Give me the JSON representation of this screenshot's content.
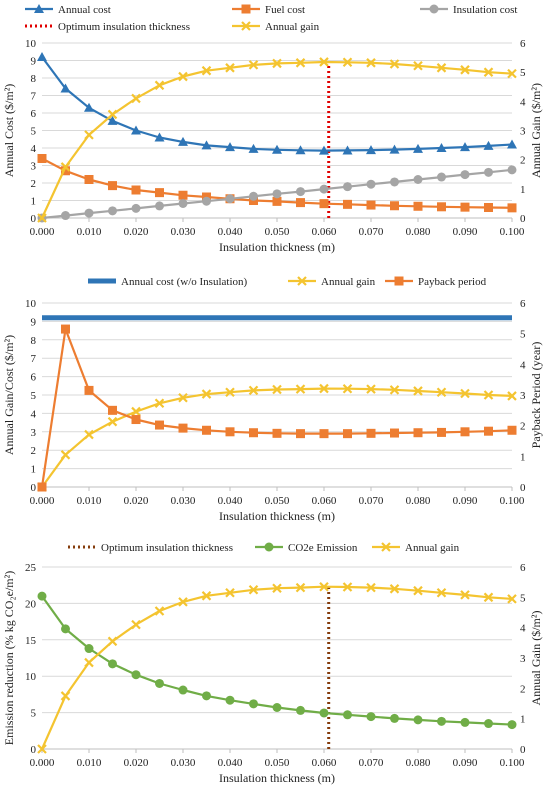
{
  "chart_data": [
    {
      "type": "line",
      "title": "",
      "xlabel": "Insulation thickness (m)",
      "ylabel_left": "Annual Cost ($/m²)",
      "ylabel_right": "Annual Gain ($/m²)",
      "xlim": [
        0,
        0.1
      ],
      "ylim_left": [
        0,
        10
      ],
      "ylim_right": [
        0,
        6
      ],
      "grid": true,
      "legend_position": "top",
      "x": [
        0,
        0.005,
        0.01,
        0.015,
        0.02,
        0.025,
        0.03,
        0.035,
        0.04,
        0.045,
        0.05,
        0.055,
        0.06,
        0.065,
        0.07,
        0.075,
        0.08,
        0.085,
        0.09,
        0.095,
        0.1
      ],
      "x_tick_labels": [
        "0.000",
        "0.010",
        "0.020",
        "0.030",
        "0.040",
        "0.050",
        "0.060",
        "0.070",
        "0.080",
        "0.090",
        "0.100"
      ],
      "y_left_tick_labels": [
        "0",
        "1",
        "2",
        "3",
        "4",
        "5",
        "6",
        "7",
        "8",
        "9",
        "10"
      ],
      "y_right_tick_labels": [
        "0",
        "1",
        "2",
        "3",
        "4",
        "5",
        "6"
      ],
      "series": [
        {
          "name": "Annual cost",
          "axis": "left",
          "color": "#2e75b6",
          "marker": "triangle",
          "values": [
            9.2,
            7.4,
            6.3,
            5.55,
            5.0,
            4.6,
            4.35,
            4.15,
            4.05,
            3.95,
            3.9,
            3.87,
            3.85,
            3.86,
            3.88,
            3.91,
            3.95,
            4.0,
            4.05,
            4.12,
            4.2
          ]
        },
        {
          "name": "Fuel cost",
          "axis": "left",
          "color": "#ed7d31",
          "marker": "square",
          "values": [
            3.4,
            2.7,
            2.2,
            1.85,
            1.6,
            1.45,
            1.3,
            1.2,
            1.1,
            1.0,
            0.95,
            0.88,
            0.82,
            0.78,
            0.74,
            0.7,
            0.67,
            0.64,
            0.62,
            0.6,
            0.58
          ]
        },
        {
          "name": "Insulation cost",
          "axis": "left",
          "color": "#a5a5a5",
          "marker": "circle",
          "values": [
            0,
            0.14,
            0.28,
            0.41,
            0.55,
            0.69,
            0.83,
            0.96,
            1.1,
            1.24,
            1.38,
            1.51,
            1.65,
            1.79,
            1.93,
            2.06,
            2.2,
            2.34,
            2.48,
            2.61,
            2.75
          ]
        },
        {
          "name": "Annual gain",
          "axis": "right",
          "color": "#f4c430",
          "marker": "x",
          "values": [
            0,
            1.75,
            2.85,
            3.55,
            4.1,
            4.55,
            4.85,
            5.05,
            5.15,
            5.25,
            5.3,
            5.32,
            5.35,
            5.34,
            5.32,
            5.28,
            5.22,
            5.15,
            5.08,
            5.0,
            4.95
          ]
        }
      ],
      "vertical_line": {
        "name": "Optimum insulation thickness",
        "x": 0.061,
        "color": "#e00000",
        "style": "dotted",
        "y_top_right": 5.35
      }
    },
    {
      "type": "line",
      "title": "",
      "xlabel": "Insulation thickness (m)",
      "ylabel_left": "Annual Gain/Cost ($/m²)",
      "ylabel_right": "Payback Period (year)",
      "xlim": [
        0,
        0.1
      ],
      "ylim_left": [
        0,
        10
      ],
      "ylim_right": [
        0,
        6
      ],
      "grid": true,
      "legend_position": "top",
      "x": [
        0,
        0.005,
        0.01,
        0.015,
        0.02,
        0.025,
        0.03,
        0.035,
        0.04,
        0.045,
        0.05,
        0.055,
        0.06,
        0.065,
        0.07,
        0.075,
        0.08,
        0.085,
        0.09,
        0.095,
        0.1
      ],
      "x_tick_labels": [
        "0.000",
        "0.010",
        "0.020",
        "0.030",
        "0.040",
        "0.050",
        "0.060",
        "0.070",
        "0.080",
        "0.090",
        "0.100"
      ],
      "y_left_tick_labels": [
        "0",
        "1",
        "2",
        "3",
        "4",
        "5",
        "6",
        "7",
        "8",
        "9",
        "10"
      ],
      "y_right_tick_labels": [
        "0",
        "1",
        "2",
        "3",
        "4",
        "5",
        "6"
      ],
      "series": [
        {
          "name": "Annual cost (w/o Insulation)",
          "axis": "left",
          "color": "#2e75b6",
          "marker": "none",
          "line_width": 5,
          "values": [
            9.2,
            9.2,
            9.2,
            9.2,
            9.2,
            9.2,
            9.2,
            9.2,
            9.2,
            9.2,
            9.2,
            9.2,
            9.2,
            9.2,
            9.2,
            9.2,
            9.2,
            9.2,
            9.2,
            9.2,
            9.2
          ]
        },
        {
          "name": "Annual gain",
          "axis": "left",
          "color": "#f4c430",
          "marker": "x",
          "values": [
            0,
            1.75,
            2.85,
            3.55,
            4.1,
            4.55,
            4.85,
            5.05,
            5.15,
            5.25,
            5.3,
            5.32,
            5.35,
            5.34,
            5.32,
            5.28,
            5.22,
            5.15,
            5.08,
            5.0,
            4.95
          ]
        },
        {
          "name": "Payback period",
          "axis": "right",
          "color": "#ed7d31",
          "marker": "square",
          "values": [
            0,
            5.15,
            3.15,
            2.5,
            2.2,
            2.02,
            1.92,
            1.85,
            1.8,
            1.77,
            1.75,
            1.74,
            1.74,
            1.74,
            1.75,
            1.76,
            1.77,
            1.78,
            1.8,
            1.82,
            1.85
          ]
        }
      ]
    },
    {
      "type": "line",
      "title": "",
      "xlabel": "Insulation thickness (m)",
      "ylabel_left": "Emission reduction  (% kg CO₂e/m²)",
      "ylabel_right": "Annual Gain ($/m²)",
      "xlim": [
        0,
        0.1
      ],
      "ylim_left": [
        0,
        25
      ],
      "ylim_right": [
        0,
        6
      ],
      "grid": true,
      "legend_position": "top",
      "x": [
        0,
        0.005,
        0.01,
        0.015,
        0.02,
        0.025,
        0.03,
        0.035,
        0.04,
        0.045,
        0.05,
        0.055,
        0.06,
        0.065,
        0.07,
        0.075,
        0.08,
        0.085,
        0.09,
        0.095,
        0.1
      ],
      "x_tick_labels": [
        "0.000",
        "0.010",
        "0.020",
        "0.030",
        "0.040",
        "0.050",
        "0.060",
        "0.070",
        "0.080",
        "0.090",
        "0.100"
      ],
      "y_left_tick_labels": [
        "0",
        "5",
        "10",
        "15",
        "20",
        "25"
      ],
      "y_right_tick_labels": [
        "0",
        "1",
        "2",
        "3",
        "4",
        "5",
        "6"
      ],
      "series": [
        {
          "name": "CO2e Emission",
          "axis": "left",
          "color": "#70ad47",
          "marker": "circle",
          "values": [
            21,
            16.5,
            13.8,
            11.7,
            10.2,
            9.0,
            8.1,
            7.3,
            6.7,
            6.2,
            5.7,
            5.3,
            4.95,
            4.7,
            4.45,
            4.2,
            4.0,
            3.8,
            3.65,
            3.5,
            3.35
          ]
        },
        {
          "name": "Annual gain",
          "axis": "right",
          "color": "#f4c430",
          "marker": "x",
          "values": [
            0,
            1.75,
            2.85,
            3.55,
            4.1,
            4.55,
            4.85,
            5.05,
            5.15,
            5.25,
            5.3,
            5.32,
            5.35,
            5.34,
            5.32,
            5.28,
            5.22,
            5.15,
            5.08,
            5.0,
            4.95
          ]
        }
      ],
      "vertical_line": {
        "name": "Optimum insulation thickness",
        "x": 0.061,
        "color": "#843c0c",
        "style": "dotted",
        "y_top_right": 5.35
      }
    }
  ]
}
